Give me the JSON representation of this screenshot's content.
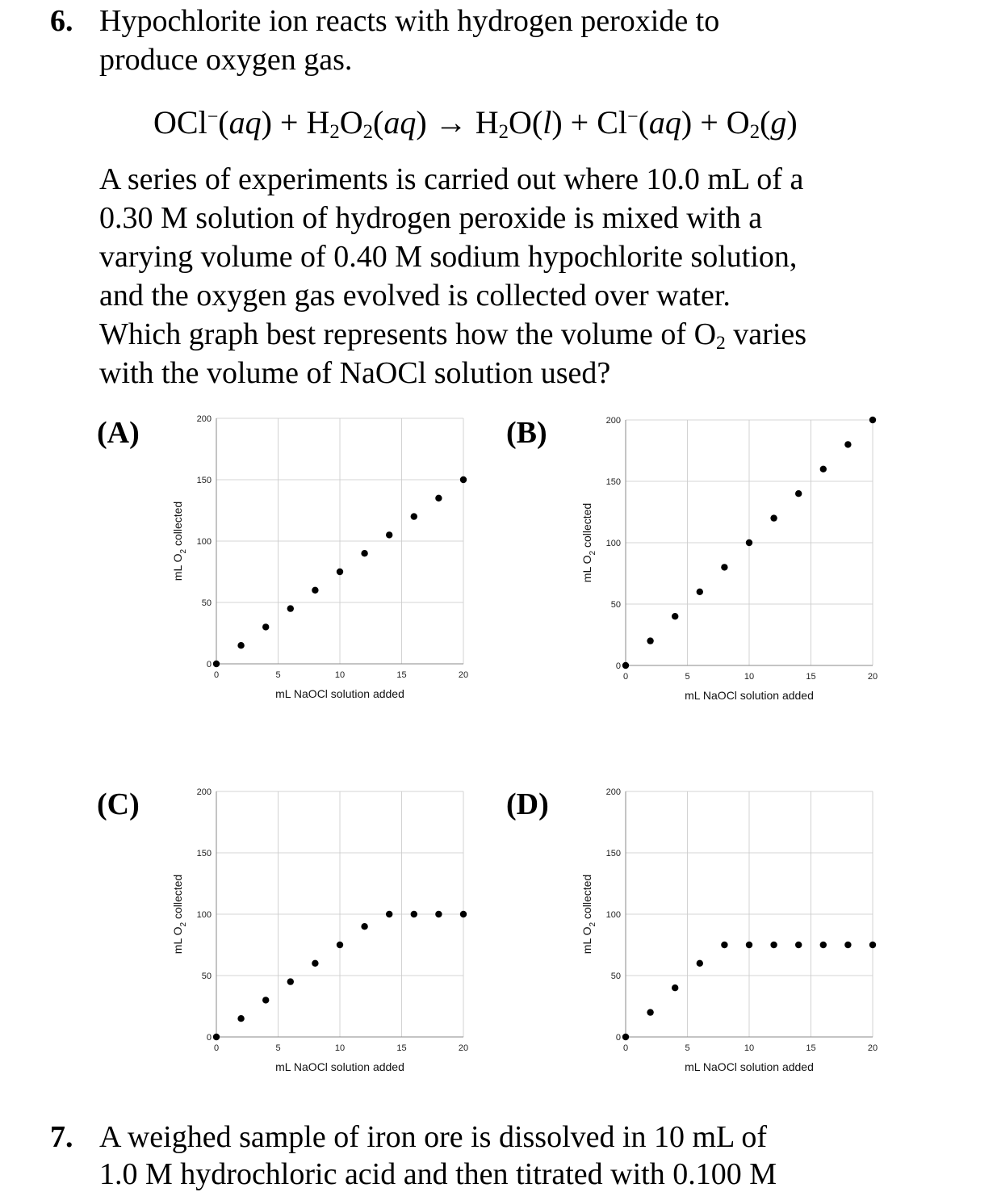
{
  "q6": {
    "number": "6.",
    "lines": [
      "Hypochlorite ion reacts with hydrogen peroxide to",
      "produce oxygen gas.",
      "A series of experiments is carried out where 10.0 mL of a",
      "0.30 M solution of hydrogen peroxide is mixed with a",
      "varying volume of 0.40 M sodium hypochlorite solution,",
      "and the oxygen gas evolved is collected over water.",
      "Which graph best represents how the volume of O",
      "with the volume of NaOCl solution used?"
    ],
    "line7_sub": "2",
    "line7_tail": " varies",
    "equation": {
      "p1": "OCl",
      "sup1": "−",
      "aq": "(aq)",
      "plus": " + ",
      "h": "H",
      "o": "O",
      "two": "2",
      "arrow": " → ",
      "liq": "(l)",
      "cl": "Cl",
      "o2": "O",
      "gas": "(g)",
      "lp": "(",
      "rp": ")",
      "l": "l",
      "aqi": "aq",
      "gi": "g"
    }
  },
  "options": [
    "(A)",
    "(B)",
    "(C)",
    "(D)"
  ],
  "q7": {
    "number": "7.",
    "lines": [
      "A weighed sample of iron ore is dissolved in 10 mL of",
      "1.0 M hydrochloric acid and then titrated with 0.100 M"
    ]
  },
  "chart_data": [
    {
      "type": "scatter",
      "xlabel": "mL NaOCl solution added",
      "ylabel": "mL O",
      "ylabel_sub": "2",
      "ylabel_tail": " collected",
      "xlim": [
        0,
        20
      ],
      "ylim": [
        0,
        200
      ],
      "xticks": [
        "0",
        "5",
        "10",
        "15",
        "20"
      ],
      "yticks": [
        "0",
        "50",
        "100",
        "150",
        "200"
      ],
      "grid": true,
      "x": [
        0,
        2,
        4,
        6,
        8,
        10,
        12,
        14,
        16,
        18,
        20
      ],
      "y": [
        0,
        15,
        30,
        45,
        60,
        75,
        90,
        105,
        120,
        135,
        150
      ]
    },
    {
      "type": "scatter",
      "xlabel": "mL NaOCl solution added",
      "ylabel": "mL O",
      "ylabel_sub": "2",
      "ylabel_tail": " collected",
      "xlim": [
        0,
        20
      ],
      "ylim": [
        0,
        200
      ],
      "xticks": [
        "0",
        "5",
        "10",
        "15",
        "20"
      ],
      "yticks": [
        "0",
        "50",
        "100",
        "150",
        "200"
      ],
      "grid": true,
      "x": [
        0,
        2,
        4,
        6,
        8,
        10,
        12,
        14,
        16,
        18,
        20
      ],
      "y": [
        0,
        20,
        40,
        60,
        80,
        100,
        120,
        140,
        160,
        180,
        200
      ]
    },
    {
      "type": "scatter",
      "xlabel": "mL NaOCl solution added",
      "ylabel": "mL O",
      "ylabel_sub": "2",
      "ylabel_tail": " collected",
      "xlim": [
        0,
        20
      ],
      "ylim": [
        0,
        200
      ],
      "xticks": [
        "0",
        "5",
        "10",
        "15",
        "20"
      ],
      "yticks": [
        "0",
        "50",
        "100",
        "150",
        "200"
      ],
      "grid": true,
      "x": [
        0,
        2,
        4,
        6,
        8,
        10,
        12,
        14,
        16,
        18,
        20
      ],
      "y": [
        0,
        15,
        30,
        45,
        60,
        75,
        90,
        100,
        100,
        100,
        100
      ]
    },
    {
      "type": "scatter",
      "xlabel": "mL NaOCl solution added",
      "ylabel": "mL O",
      "ylabel_sub": "2",
      "ylabel_tail": " collected",
      "xlim": [
        0,
        20
      ],
      "ylim": [
        0,
        200
      ],
      "xticks": [
        "0",
        "5",
        "10",
        "15",
        "20"
      ],
      "yticks": [
        "0",
        "50",
        "100",
        "150",
        "200"
      ],
      "grid": true,
      "x": [
        0,
        2,
        4,
        6,
        8,
        10,
        12,
        14,
        16,
        18,
        20
      ],
      "y": [
        0,
        20,
        40,
        60,
        75,
        75,
        75,
        75,
        75,
        75,
        75
      ]
    }
  ]
}
